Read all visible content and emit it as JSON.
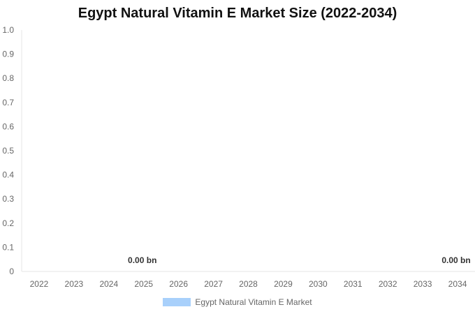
{
  "chart_data": {
    "type": "bar",
    "title": "Egypt Natural Vitamin E Market Size (2022-2034)",
    "xlabel": "",
    "ylabel": "",
    "categories": [
      "2022",
      "2023",
      "2024",
      "2025",
      "2026",
      "2027",
      "2028",
      "2029",
      "2030",
      "2031",
      "2032",
      "2033",
      "2034"
    ],
    "series": [
      {
        "name": "Egypt Natural Vitamin E Market",
        "values": [
          0,
          0,
          0,
          0,
          0,
          0,
          0,
          0,
          0,
          0,
          0,
          0,
          0
        ],
        "color": "#a8d0fb"
      }
    ],
    "ylim": [
      0,
      1.0
    ],
    "y_ticks": [
      "0",
      "0.1",
      "0.2",
      "0.3",
      "0.4",
      "0.5",
      "0.6",
      "0.7",
      "0.8",
      "0.9",
      "1.0"
    ],
    "data_labels": [
      {
        "category": "2025",
        "text": "0.00 bn"
      },
      {
        "category": "2034",
        "text": "0.00 bn"
      }
    ],
    "grid": false,
    "legend_position": "bottom"
  }
}
